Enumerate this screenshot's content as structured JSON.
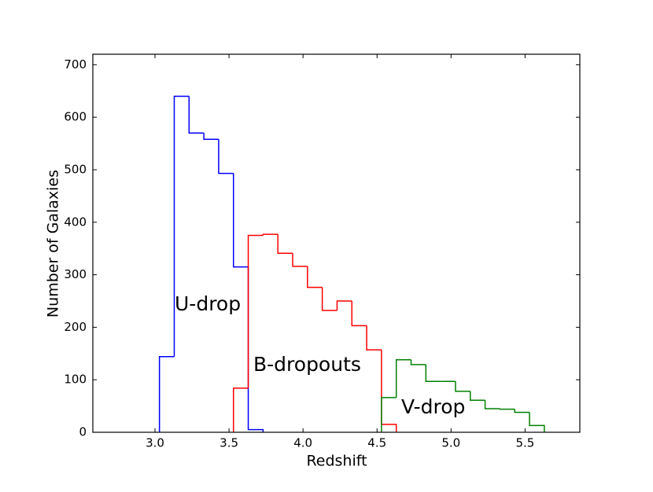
{
  "chart_data": {
    "type": "histogram",
    "xlabel": "Redshift",
    "ylabel": "Number of Galaxies",
    "xlim": [
      2.58,
      5.87
    ],
    "ylim": [
      0,
      720
    ],
    "xticks": [
      {
        "value": 3,
        "label": "3.0"
      },
      {
        "value": 3.5,
        "label": "3.5"
      },
      {
        "value": 4,
        "label": "4.0"
      },
      {
        "value": 4.5,
        "label": "4.5"
      },
      {
        "value": 5,
        "label": "5.0"
      },
      {
        "value": 5.5,
        "label": "5.5"
      }
    ],
    "yticks": [
      0,
      100,
      200,
      300,
      400,
      500,
      600,
      700
    ],
    "grid": false,
    "series": [
      {
        "name": "U-drop",
        "color": "#0000ff",
        "bins": [
          3.03,
          3.13,
          3.23,
          3.33,
          3.43,
          3.53,
          3.63,
          3.73
        ],
        "values": [
          144,
          640,
          570,
          558,
          493,
          315,
          5
        ]
      },
      {
        "name": "B-dropouts",
        "color": "#ff0000",
        "bins": [
          3.53,
          3.63,
          3.73,
          3.83,
          3.93,
          4.03,
          4.13,
          4.23,
          4.33,
          4.43,
          4.53,
          4.63
        ],
        "values": [
          84,
          375,
          377,
          341,
          316,
          276,
          232,
          250,
          203,
          157,
          15
        ]
      },
      {
        "name": "V-drop",
        "color": "#008000",
        "bins": [
          4.53,
          4.63,
          4.73,
          4.83,
          4.93,
          5.03,
          5.13,
          5.23,
          5.33,
          5.43,
          5.53,
          5.63
        ],
        "values": [
          66,
          138,
          129,
          97,
          97,
          78,
          61,
          45,
          44,
          38,
          13
        ]
      }
    ]
  }
}
